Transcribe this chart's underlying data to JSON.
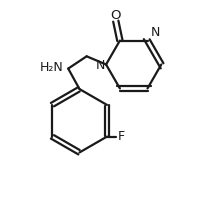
{
  "background_color": "#ffffff",
  "line_color": "#1a1a1a",
  "line_width": 1.6,
  "font_size_label": 9.0,
  "figsize": [
    2.06,
    2.19
  ],
  "dpi": 100,
  "xlim": [
    0.0,
    1.0
  ],
  "ylim": [
    0.0,
    1.0
  ]
}
